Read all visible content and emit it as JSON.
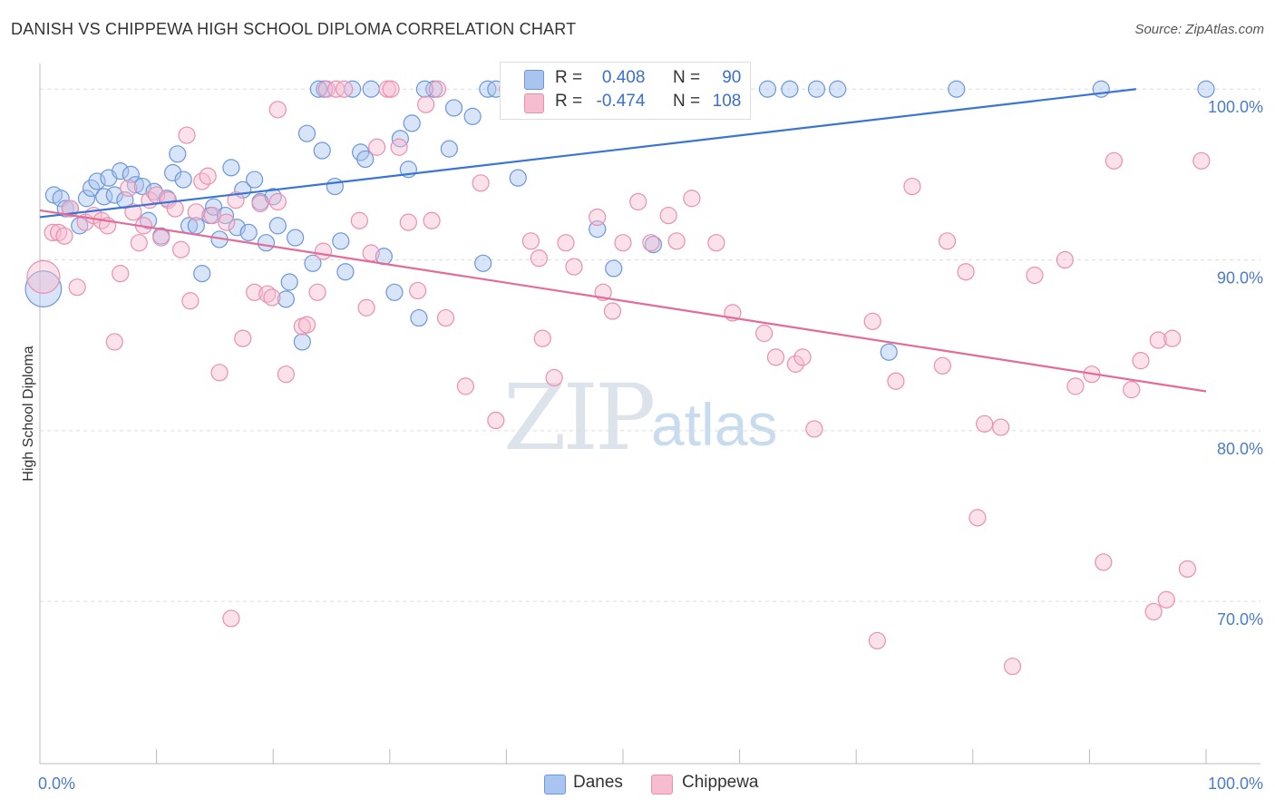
{
  "title": "DANISH VS CHIPPEWA HIGH SCHOOL DIPLOMA CORRELATION CHART",
  "source": "Source: ZipAtlas.com",
  "watermark": {
    "zip": "ZIP",
    "atlas": "atlas"
  },
  "legend": {
    "r_label": "R =",
    "n_label": "N =",
    "danes": {
      "r": "0.408",
      "n": "90"
    },
    "chippewa": {
      "r": "-0.474",
      "n": "108"
    }
  },
  "bottom_legend": {
    "danes": "Danes",
    "chippewa": "Chippewa"
  },
  "colors": {
    "danes_fill": "#a9c4ee",
    "danes_stroke": "#6b97db",
    "danes_line": "#3a75d4",
    "chip_fill": "#f6bcd0",
    "chip_stroke": "#eb8fb0",
    "chip_line": "#e46b98",
    "tick": "#4a7cc9",
    "grid": "#dddddd"
  },
  "chart_data": {
    "type": "scatter",
    "xlabel": "",
    "ylabel": "High School Diploma",
    "xlim": [
      0,
      100
    ],
    "ylim": [
      60.5,
      101.5
    ],
    "x_tick_labels": [
      "0.0%",
      "100.0%"
    ],
    "y_ticks": [
      70,
      80,
      90,
      100
    ],
    "y_tick_labels": [
      "70.0%",
      "80.0%",
      "90.0%",
      "100.0%"
    ],
    "grid": true,
    "series": [
      {
        "name": "Danes",
        "trend": {
          "x0": 0,
          "y0": 92.5,
          "x1": 94,
          "y1": 100
        },
        "points": [
          [
            0.3,
            88.3,
            2.2
          ],
          [
            1.2,
            93.8,
            1
          ],
          [
            1.8,
            93.6,
            1
          ],
          [
            2.2,
            93,
            1
          ],
          [
            2.6,
            93,
            1
          ],
          [
            3.4,
            92,
            1
          ],
          [
            4.0,
            93.6,
            1
          ],
          [
            4.4,
            94.2,
            1
          ],
          [
            4.9,
            94.6,
            1
          ],
          [
            5.5,
            93.7,
            1
          ],
          [
            5.9,
            94.8,
            1
          ],
          [
            6.4,
            93.8,
            1
          ],
          [
            6.9,
            95.2,
            1
          ],
          [
            7.3,
            93.5,
            1
          ],
          [
            7.8,
            95,
            1
          ],
          [
            8.2,
            94.4,
            1
          ],
          [
            8.8,
            94.3,
            1
          ],
          [
            9.3,
            92.3,
            1
          ],
          [
            9.8,
            94,
            1
          ],
          [
            10.4,
            91.4,
            1
          ],
          [
            10.9,
            93.6,
            1
          ],
          [
            11.4,
            95.1,
            1
          ],
          [
            11.8,
            96.2,
            1
          ],
          [
            12.3,
            94.7,
            1
          ],
          [
            12.8,
            92,
            1
          ],
          [
            13.4,
            92,
            1
          ],
          [
            13.9,
            89.2,
            1
          ],
          [
            14.6,
            92.6,
            1
          ],
          [
            14.9,
            93.1,
            1
          ],
          [
            15.4,
            91.2,
            1
          ],
          [
            15.9,
            92.6,
            1
          ],
          [
            16.4,
            95.4,
            1
          ],
          [
            16.9,
            91.9,
            1
          ],
          [
            17.4,
            94.1,
            1
          ],
          [
            17.9,
            91.6,
            1
          ],
          [
            18.4,
            94.7,
            1
          ],
          [
            18.9,
            93.4,
            1
          ],
          [
            19.4,
            91,
            1
          ],
          [
            20.0,
            93.7,
            1
          ],
          [
            20.4,
            92,
            1
          ],
          [
            21.1,
            87.7,
            1
          ],
          [
            21.4,
            88.7,
            1
          ],
          [
            21.9,
            91.3,
            1
          ],
          [
            22.5,
            85.2,
            1
          ],
          [
            22.9,
            97.4,
            1
          ],
          [
            23.4,
            89.8,
            1
          ],
          [
            24.2,
            96.4,
            1
          ],
          [
            24.4,
            100,
            1
          ],
          [
            25.3,
            94.3,
            1
          ],
          [
            25.8,
            91.1,
            1
          ],
          [
            26.2,
            89.3,
            1
          ],
          [
            27.5,
            96.3,
            1
          ],
          [
            27.9,
            95.9,
            1
          ],
          [
            28.4,
            100,
            1
          ],
          [
            29.5,
            90.2,
            1
          ],
          [
            30.4,
            88.1,
            1
          ],
          [
            30.9,
            97.1,
            1
          ],
          [
            31.6,
            95.3,
            1
          ],
          [
            31.9,
            98,
            1
          ],
          [
            32.5,
            86.6,
            1
          ],
          [
            33.8,
            100,
            1
          ],
          [
            35.1,
            96.5,
            1
          ],
          [
            35.5,
            98.9,
            1
          ],
          [
            37.1,
            98.4,
            1
          ],
          [
            38.0,
            89.8,
            1
          ],
          [
            38.4,
            100,
            1
          ],
          [
            39.1,
            100,
            1
          ],
          [
            41.0,
            94.8,
            1
          ],
          [
            42.9,
            100,
            1
          ],
          [
            45.8,
            100,
            1
          ],
          [
            47.8,
            91.8,
            1
          ],
          [
            49.2,
            89.5,
            1
          ],
          [
            50.4,
            100,
            1
          ],
          [
            52.6,
            90.9,
            1
          ],
          [
            54.3,
            100,
            1
          ],
          [
            56.0,
            100,
            1
          ],
          [
            57.8,
            100,
            1
          ],
          [
            62.4,
            100,
            1
          ],
          [
            64.3,
            100,
            1
          ],
          [
            66.6,
            100,
            1
          ],
          [
            68.4,
            100,
            1
          ],
          [
            72.8,
            84.6,
            1
          ],
          [
            78.6,
            100,
            1
          ],
          [
            91.0,
            100,
            1
          ],
          [
            100.0,
            100,
            1
          ],
          [
            23.9,
            100,
            1
          ],
          [
            26.8,
            100,
            1
          ],
          [
            33.0,
            100,
            1
          ],
          [
            45.3,
            100,
            1
          ],
          [
            52.0,
            100,
            1
          ]
        ]
      },
      {
        "name": "Chippewa",
        "trend": {
          "x0": 0,
          "y0": 92.9,
          "x1": 100,
          "y1": 82.3
        },
        "points": [
          [
            0.3,
            89,
            2
          ],
          [
            1.1,
            91.6,
            1
          ],
          [
            1.6,
            91.6,
            1
          ],
          [
            2.1,
            91.4,
            1
          ],
          [
            2.6,
            93,
            1
          ],
          [
            3.2,
            88.4,
            1
          ],
          [
            3.9,
            92.2,
            1
          ],
          [
            4.6,
            92.6,
            1
          ],
          [
            5.3,
            92.3,
            1
          ],
          [
            5.8,
            92,
            1
          ],
          [
            6.4,
            85.2,
            1
          ],
          [
            6.9,
            89.2,
            1
          ],
          [
            7.6,
            94.2,
            1
          ],
          [
            8.0,
            92.8,
            1
          ],
          [
            8.5,
            91,
            1
          ],
          [
            8.9,
            92,
            1
          ],
          [
            9.4,
            93.5,
            1
          ],
          [
            10.0,
            93.8,
            1
          ],
          [
            10.4,
            91.3,
            1
          ],
          [
            11.0,
            93.5,
            1
          ],
          [
            11.6,
            93,
            1
          ],
          [
            12.1,
            90.6,
            1
          ],
          [
            12.6,
            97.3,
            1
          ],
          [
            12.9,
            87.6,
            1
          ],
          [
            13.4,
            92.8,
            1
          ],
          [
            13.9,
            94.6,
            1
          ],
          [
            14.4,
            94.9,
            1
          ],
          [
            14.8,
            92.6,
            1
          ],
          [
            15.4,
            83.4,
            1
          ],
          [
            16.0,
            92.2,
            1
          ],
          [
            16.4,
            69,
            1
          ],
          [
            16.8,
            93.5,
            1
          ],
          [
            17.4,
            85.4,
            1
          ],
          [
            18.4,
            88.1,
            1
          ],
          [
            18.9,
            93.3,
            1
          ],
          [
            19.5,
            88,
            1
          ],
          [
            19.9,
            87.8,
            1
          ],
          [
            20.4,
            93.4,
            1
          ],
          [
            20.4,
            98.8,
            1
          ],
          [
            21.1,
            83.3,
            1
          ],
          [
            22.5,
            86.1,
            1
          ],
          [
            22.9,
            86.2,
            1
          ],
          [
            23.8,
            88.1,
            1
          ],
          [
            24.3,
            90.5,
            1
          ],
          [
            24.6,
            100,
            1
          ],
          [
            25.4,
            100,
            1
          ],
          [
            26.1,
            100,
            1
          ],
          [
            27.4,
            92.3,
            1
          ],
          [
            28.0,
            87.2,
            1
          ],
          [
            28.4,
            90.4,
            1
          ],
          [
            28.9,
            96.6,
            1
          ],
          [
            29.8,
            100,
            1
          ],
          [
            30.8,
            96.6,
            1
          ],
          [
            31.6,
            92.2,
            1
          ],
          [
            32.4,
            88.2,
            1
          ],
          [
            33.1,
            99.1,
            1
          ],
          [
            33.6,
            92.3,
            1
          ],
          [
            34.1,
            100,
            1
          ],
          [
            34.8,
            86.6,
            1
          ],
          [
            36.5,
            82.6,
            1
          ],
          [
            37.8,
            94.5,
            1
          ],
          [
            39.1,
            80.6,
            1
          ],
          [
            40.1,
            100,
            1
          ],
          [
            42.1,
            91.1,
            1
          ],
          [
            42.8,
            90.1,
            1
          ],
          [
            43.1,
            85.4,
            1
          ],
          [
            44.1,
            83.1,
            1
          ],
          [
            45.1,
            91,
            1
          ],
          [
            45.8,
            89.6,
            1
          ],
          [
            46.9,
            100,
            1
          ],
          [
            47.8,
            92.5,
            1
          ],
          [
            48.3,
            88.1,
            1
          ],
          [
            49.1,
            87,
            1
          ],
          [
            50.0,
            91,
            1
          ],
          [
            51.3,
            93.4,
            1
          ],
          [
            52.4,
            91,
            1
          ],
          [
            53.9,
            92.6,
            1
          ],
          [
            54.6,
            91.1,
            1
          ],
          [
            55.9,
            93.6,
            1
          ],
          [
            58.0,
            91,
            1
          ],
          [
            59.4,
            86.9,
            1
          ],
          [
            62.1,
            85.7,
            1
          ],
          [
            63.1,
            84.3,
            1
          ],
          [
            64.8,
            83.9,
            1
          ],
          [
            65.4,
            84.3,
            1
          ],
          [
            66.4,
            80.1,
            1
          ],
          [
            71.4,
            86.4,
            1
          ],
          [
            71.8,
            67.7,
            1
          ],
          [
            73.4,
            82.9,
            1
          ],
          [
            74.8,
            94.3,
            1
          ],
          [
            77.4,
            83.8,
            1
          ],
          [
            77.8,
            91.1,
            1
          ],
          [
            79.4,
            89.3,
            1
          ],
          [
            80.4,
            74.9,
            1
          ],
          [
            81.0,
            80.4,
            1
          ],
          [
            82.4,
            80.2,
            1
          ],
          [
            83.4,
            66.2,
            1
          ],
          [
            85.3,
            89.1,
            1
          ],
          [
            87.9,
            90,
            1
          ],
          [
            88.8,
            82.6,
            1
          ],
          [
            90.2,
            83.3,
            1
          ],
          [
            91.2,
            72.3,
            1
          ],
          [
            92.1,
            95.8,
            1
          ],
          [
            93.6,
            82.4,
            1
          ],
          [
            94.4,
            84.1,
            1
          ],
          [
            95.9,
            85.3,
            1
          ],
          [
            97.1,
            85.4,
            1
          ],
          [
            98.4,
            71.9,
            1
          ],
          [
            99.6,
            95.8,
            1
          ],
          [
            96.6,
            70.1,
            1
          ],
          [
            95.5,
            69.4,
            1
          ],
          [
            30.1,
            100,
            1
          ]
        ]
      }
    ]
  }
}
